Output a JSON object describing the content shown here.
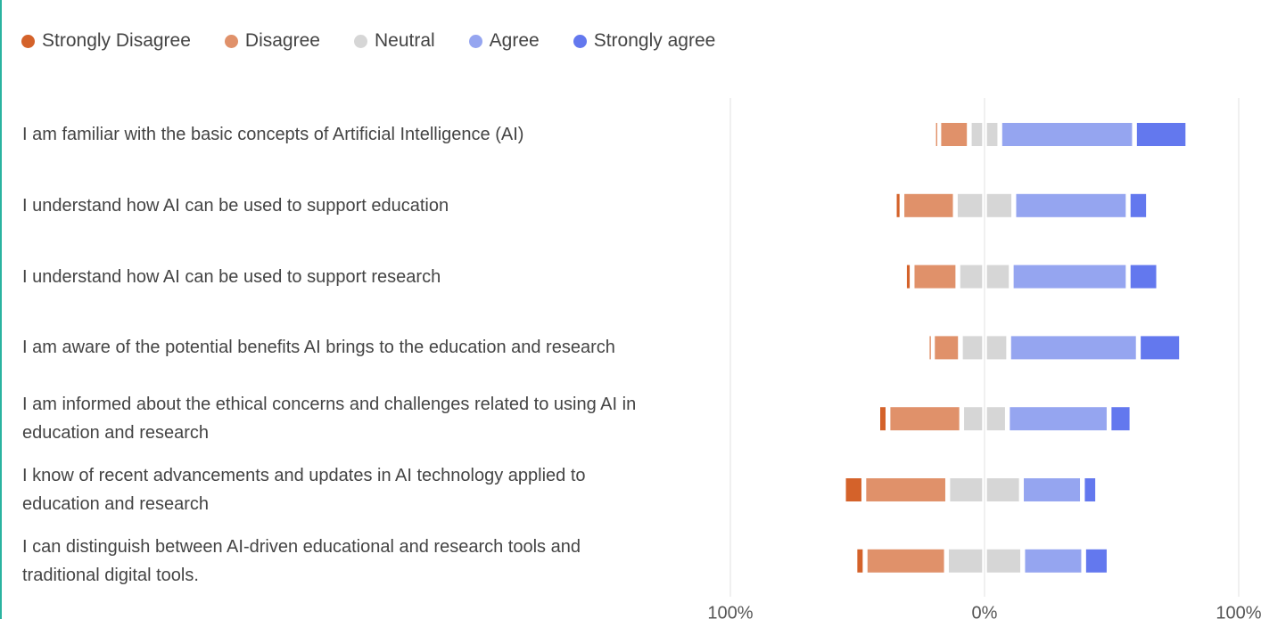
{
  "chart_data": {
    "type": "diverging_bar",
    "categories": [
      "I am familiar with the basic concepts of Artificial Intelligence (AI)",
      "I understand how AI can be used to support education",
      "I understand how AI can be used to support research",
      "I am aware of the potential benefits AI brings to the education and research",
      "I am informed about the ethical concerns and challenges related to using AI in education and research",
      "I know of recent advancements and updates in AI technology applied to education and research",
      "I can distinguish between AI-driven educational and research tools and traditional digital tools."
    ],
    "series": [
      {
        "name": "Strongly Disagree",
        "color": "#d4622a",
        "values": [
          2,
          3,
          3,
          2,
          4,
          8,
          4
        ]
      },
      {
        "name": "Disagree",
        "color": "#e0916a",
        "values": [
          12,
          21,
          18,
          11,
          29,
          33,
          32
        ]
      },
      {
        "name": "Neutral",
        "color": "#d6d6d6",
        "values": [
          12,
          23,
          21,
          19,
          18,
          29,
          30
        ]
      },
      {
        "name": "Agree",
        "color": "#95a5f0",
        "values": [
          53,
          45,
          46,
          51,
          40,
          24,
          24
        ]
      },
      {
        "name": "Strongly agree",
        "color": "#6378ee",
        "values": [
          21,
          8,
          12,
          17,
          9,
          6,
          10
        ]
      }
    ],
    "xlim": [
      -100,
      100
    ],
    "xticks": [
      {
        "value": -100,
        "label": "100%"
      },
      {
        "value": 0,
        "label": "0%"
      },
      {
        "value": 100,
        "label": "100%"
      }
    ],
    "grid": true
  }
}
